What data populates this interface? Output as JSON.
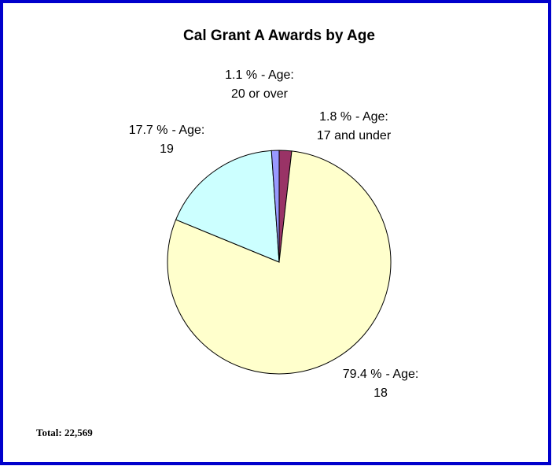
{
  "chart_data": {
    "type": "pie",
    "title": "Cal Grant A Awards by Age",
    "categories": [
      "17 and under",
      "18",
      "19",
      "20 or over"
    ],
    "values": [
      1.8,
      79.4,
      17.7,
      1.1
    ],
    "value_labels": [
      "1.8 %",
      "79.4 %",
      "17.7 %",
      "1.1 %"
    ],
    "label_text": "- Age:",
    "colors": [
      "#993366",
      "#FFFFCC",
      "#CCFFFF",
      "#9999FF"
    ],
    "footnote": "Total: 22,569"
  }
}
